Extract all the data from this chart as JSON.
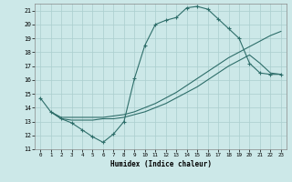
{
  "xlabel": "Humidex (Indice chaleur)",
  "bg_color": "#cce8e8",
  "line_color": "#2e6e6a",
  "grid_color": "#aacece",
  "xlim": [
    -0.5,
    23.5
  ],
  "ylim": [
    11,
    21.5
  ],
  "xticks": [
    0,
    1,
    2,
    3,
    4,
    5,
    6,
    7,
    8,
    9,
    10,
    11,
    12,
    13,
    14,
    15,
    16,
    17,
    18,
    19,
    20,
    21,
    22,
    23
  ],
  "yticks": [
    11,
    12,
    13,
    14,
    15,
    16,
    17,
    18,
    19,
    20,
    21
  ],
  "line1_x": [
    0,
    1,
    2,
    3,
    4,
    5,
    6,
    7,
    8,
    9,
    10,
    11,
    12,
    13,
    14,
    15,
    16,
    17,
    18,
    19,
    20,
    21,
    22,
    23
  ],
  "line1_y": [
    14.7,
    13.7,
    13.2,
    12.9,
    12.4,
    11.9,
    11.5,
    12.1,
    13.0,
    16.1,
    18.5,
    20.0,
    20.3,
    20.5,
    21.2,
    21.3,
    21.1,
    20.4,
    19.7,
    19.0,
    17.2,
    16.5,
    16.4,
    16.4
  ],
  "line2_x": [
    1,
    2,
    3,
    4,
    5,
    6,
    7,
    8,
    9,
    10,
    11,
    12,
    13,
    14,
    15,
    16,
    17,
    18,
    19,
    20,
    21,
    22,
    23
  ],
  "line2_y": [
    13.7,
    13.3,
    13.3,
    13.3,
    13.3,
    13.3,
    13.4,
    13.5,
    13.7,
    14.0,
    14.3,
    14.7,
    15.1,
    15.6,
    16.1,
    16.6,
    17.1,
    17.6,
    18.0,
    18.4,
    18.8,
    19.2,
    19.5
  ],
  "line3_x": [
    1,
    2,
    3,
    4,
    5,
    6,
    7,
    8,
    9,
    10,
    11,
    12,
    13,
    14,
    15,
    16,
    17,
    18,
    19,
    20,
    21,
    22,
    23
  ],
  "line3_y": [
    13.7,
    13.2,
    13.1,
    13.1,
    13.1,
    13.2,
    13.2,
    13.3,
    13.5,
    13.7,
    14.0,
    14.3,
    14.7,
    15.1,
    15.5,
    16.0,
    16.5,
    17.0,
    17.4,
    17.8,
    17.2,
    16.5,
    16.4
  ]
}
